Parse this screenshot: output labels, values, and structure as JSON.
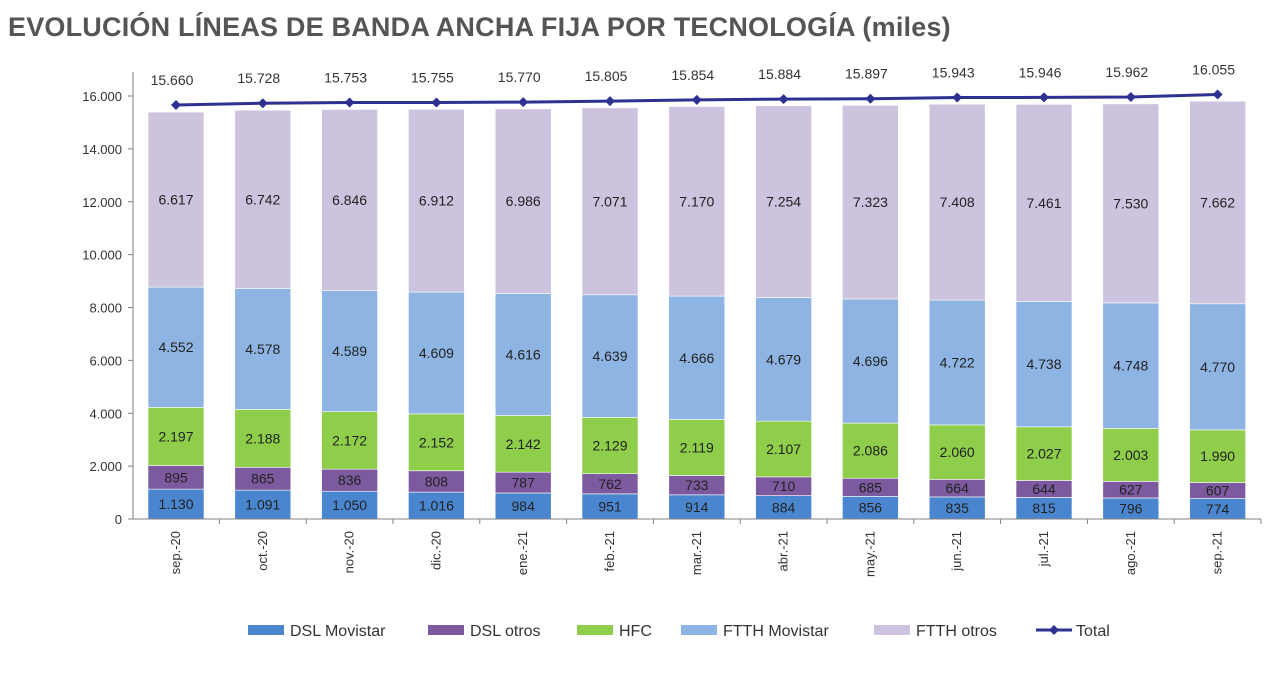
{
  "chart_data": {
    "type": "bar",
    "stacked": true,
    "title": "EVOLUCIÓN LÍNEAS DE BANDA ANCHA FIJA POR TECNOLOGÍA (miles)",
    "categories": [
      "sep.-20",
      "oct.-20",
      "nov.-20",
      "dic.-20",
      "ene.-21",
      "feb.-21",
      "mar.-21",
      "abr.-21",
      "may.-21",
      "jun.-21",
      "jul.-21",
      "ago.-21",
      "sep.-21"
    ],
    "ylim": [
      0,
      16000
    ],
    "yticks": [
      0,
      2000,
      4000,
      6000,
      8000,
      10000,
      12000,
      14000,
      16000
    ],
    "ytick_labels": [
      "0",
      "2.000",
      "4.000",
      "6.000",
      "8.000",
      "10.000",
      "12.000",
      "14.000",
      "16.000"
    ],
    "legend_position": "bottom",
    "grid": false,
    "series": [
      {
        "name": "DSL Movistar",
        "color": "#4a86cf",
        "values": [
          1130,
          1091,
          1050,
          1016,
          984,
          951,
          914,
          884,
          856,
          835,
          815,
          796,
          774
        ],
        "labels": [
          "1.130",
          "1.091",
          "1.050",
          "1.016",
          "984",
          "951",
          "914",
          "884",
          "856",
          "835",
          "815",
          "796",
          "774"
        ]
      },
      {
        "name": "DSL otros",
        "color": "#7d5a9f",
        "values": [
          895,
          865,
          836,
          808,
          787,
          762,
          733,
          710,
          685,
          664,
          644,
          627,
          607
        ],
        "labels": [
          "895",
          "865",
          "836",
          "808",
          "787",
          "762",
          "733",
          "710",
          "685",
          "664",
          "644",
          "627",
          "607"
        ]
      },
      {
        "name": "HFC",
        "color": "#8fce4a",
        "values": [
          2197,
          2188,
          2172,
          2152,
          2142,
          2129,
          2119,
          2107,
          2086,
          2060,
          2027,
          2003,
          1990
        ],
        "labels": [
          "2.197",
          "2.188",
          "2.172",
          "2.152",
          "2.142",
          "2.129",
          "2.119",
          "2.107",
          "2.086",
          "2.060",
          "2.027",
          "2.003",
          "1.990"
        ]
      },
      {
        "name": "FTTH Movistar",
        "color": "#8db4e2",
        "values": [
          4552,
          4578,
          4589,
          4609,
          4616,
          4639,
          4666,
          4679,
          4696,
          4722,
          4738,
          4748,
          4770
        ],
        "labels": [
          "4.552",
          "4.578",
          "4.589",
          "4.609",
          "4.616",
          "4.639",
          "4.666",
          "4.679",
          "4.696",
          "4.722",
          "4.738",
          "4.748",
          "4.770"
        ]
      },
      {
        "name": "FTTH otros",
        "color": "#cec3de",
        "values": [
          6617,
          6742,
          6846,
          6912,
          6986,
          7071,
          7170,
          7254,
          7323,
          7408,
          7461,
          7530,
          7662
        ],
        "labels": [
          "6.617",
          "6.742",
          "6.846",
          "6.912",
          "6.986",
          "7.071",
          "7.170",
          "7.254",
          "7.323",
          "7.408",
          "7.461",
          "7.530",
          "7.662"
        ]
      }
    ],
    "total": {
      "name": "Total",
      "color": "#2e3192",
      "values": [
        15660,
        15728,
        15753,
        15755,
        15770,
        15805,
        15854,
        15884,
        15897,
        15943,
        15946,
        15962,
        16055
      ],
      "labels": [
        "15.660",
        "15.728",
        "15.753",
        "15.755",
        "15.770",
        "15.805",
        "15.854",
        "15.884",
        "15.897",
        "15.943",
        "15.946",
        "15.962",
        "16.055"
      ]
    }
  }
}
